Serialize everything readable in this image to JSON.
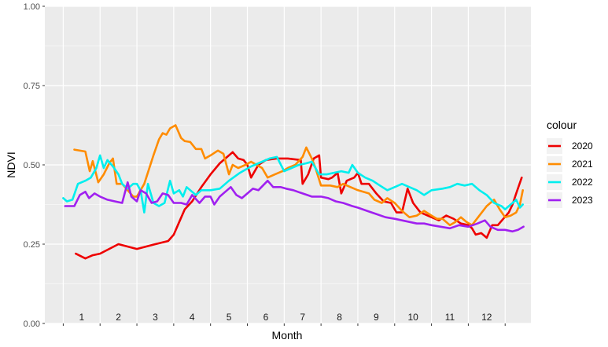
{
  "chart_data": {
    "type": "line",
    "xlabel": "Month",
    "ylabel": "NDVI",
    "xlim": [
      0,
      12
    ],
    "ylim": [
      0,
      1
    ],
    "y_ticks": [
      "0.00",
      "0.25",
      "0.50",
      "0.75",
      "1.00"
    ],
    "month_labels": [
      "1",
      "2",
      "3",
      "4",
      "5",
      "6",
      "7",
      "8",
      "9",
      "10",
      "11",
      "12"
    ],
    "grid": true,
    "legend_title": "colour",
    "legend_position": "right",
    "series": [
      {
        "name": "2020",
        "color": "#ee0000",
        "points": [
          [
            0.34,
            0.22
          ],
          [
            0.6,
            0.205
          ],
          [
            0.8,
            0.215
          ],
          [
            1.0,
            0.22
          ],
          [
            1.5,
            0.25
          ],
          [
            2.0,
            0.235
          ],
          [
            2.5,
            0.25
          ],
          [
            2.85,
            0.26
          ],
          [
            3.0,
            0.28
          ],
          [
            3.15,
            0.32
          ],
          [
            3.3,
            0.36
          ],
          [
            3.5,
            0.385
          ],
          [
            3.75,
            0.43
          ],
          [
            4.0,
            0.47
          ],
          [
            4.25,
            0.505
          ],
          [
            4.45,
            0.525
          ],
          [
            4.6,
            0.54
          ],
          [
            4.75,
            0.52
          ],
          [
            4.9,
            0.515
          ],
          [
            5.0,
            0.5
          ],
          [
            5.1,
            0.46
          ],
          [
            5.3,
            0.5
          ],
          [
            5.5,
            0.515
          ],
          [
            5.8,
            0.52
          ],
          [
            6.1,
            0.52
          ],
          [
            6.45,
            0.515
          ],
          [
            6.5,
            0.44
          ],
          [
            6.65,
            0.47
          ],
          [
            6.8,
            0.52
          ],
          [
            6.95,
            0.53
          ],
          [
            7.0,
            0.46
          ],
          [
            7.2,
            0.455
          ],
          [
            7.3,
            0.46
          ],
          [
            7.45,
            0.475
          ],
          [
            7.55,
            0.41
          ],
          [
            7.7,
            0.45
          ],
          [
            7.9,
            0.46
          ],
          [
            8.0,
            0.475
          ],
          [
            8.1,
            0.44
          ],
          [
            8.3,
            0.44
          ],
          [
            8.5,
            0.41
          ],
          [
            8.7,
            0.385
          ],
          [
            8.9,
            0.38
          ],
          [
            9.05,
            0.35
          ],
          [
            9.2,
            0.35
          ],
          [
            9.35,
            0.425
          ],
          [
            9.5,
            0.38
          ],
          [
            9.7,
            0.35
          ],
          [
            10.0,
            0.335
          ],
          [
            10.2,
            0.325
          ],
          [
            10.4,
            0.34
          ],
          [
            10.6,
            0.33
          ],
          [
            10.8,
            0.315
          ],
          [
            11.0,
            0.31
          ],
          [
            11.1,
            0.3
          ],
          [
            11.2,
            0.28
          ],
          [
            11.35,
            0.285
          ],
          [
            11.5,
            0.27
          ],
          [
            11.65,
            0.31
          ],
          [
            11.8,
            0.31
          ],
          [
            11.95,
            0.33
          ],
          [
            12.1,
            0.35
          ],
          [
            12.2,
            0.375
          ],
          [
            12.3,
            0.41
          ],
          [
            12.45,
            0.46
          ]
        ]
      },
      {
        "name": "2021",
        "color": "#ff8c00",
        "points": [
          [
            0.3,
            0.548
          ],
          [
            0.6,
            0.542
          ],
          [
            0.72,
            0.48
          ],
          [
            0.8,
            0.512
          ],
          [
            0.95,
            0.445
          ],
          [
            1.1,
            0.47
          ],
          [
            1.25,
            0.505
          ],
          [
            1.35,
            0.52
          ],
          [
            1.45,
            0.44
          ],
          [
            1.6,
            0.44
          ],
          [
            1.75,
            0.42
          ],
          [
            1.9,
            0.4
          ],
          [
            2.0,
            0.4
          ],
          [
            2.2,
            0.44
          ],
          [
            2.45,
            0.53
          ],
          [
            2.6,
            0.58
          ],
          [
            2.7,
            0.6
          ],
          [
            2.8,
            0.595
          ],
          [
            2.9,
            0.615
          ],
          [
            3.05,
            0.625
          ],
          [
            3.2,
            0.585
          ],
          [
            3.3,
            0.575
          ],
          [
            3.45,
            0.572
          ],
          [
            3.6,
            0.55
          ],
          [
            3.75,
            0.55
          ],
          [
            3.85,
            0.52
          ],
          [
            4.0,
            0.53
          ],
          [
            4.2,
            0.545
          ],
          [
            4.35,
            0.535
          ],
          [
            4.5,
            0.47
          ],
          [
            4.6,
            0.5
          ],
          [
            4.75,
            0.49
          ],
          [
            4.95,
            0.5
          ],
          [
            5.1,
            0.51
          ],
          [
            5.25,
            0.5
          ],
          [
            5.4,
            0.49
          ],
          [
            5.55,
            0.46
          ],
          [
            5.75,
            0.47
          ],
          [
            5.95,
            0.48
          ],
          [
            6.1,
            0.49
          ],
          [
            6.3,
            0.5
          ],
          [
            6.5,
            0.525
          ],
          [
            6.6,
            0.555
          ],
          [
            6.75,
            0.52
          ],
          [
            6.85,
            0.49
          ],
          [
            7.0,
            0.435
          ],
          [
            7.25,
            0.435
          ],
          [
            7.45,
            0.43
          ],
          [
            7.6,
            0.44
          ],
          [
            7.8,
            0.43
          ],
          [
            8.0,
            0.42
          ],
          [
            8.3,
            0.41
          ],
          [
            8.45,
            0.39
          ],
          [
            8.65,
            0.38
          ],
          [
            8.8,
            0.395
          ],
          [
            9.0,
            0.38
          ],
          [
            9.2,
            0.355
          ],
          [
            9.4,
            0.335
          ],
          [
            9.6,
            0.34
          ],
          [
            9.8,
            0.355
          ],
          [
            10.0,
            0.34
          ],
          [
            10.15,
            0.33
          ],
          [
            10.3,
            0.33
          ],
          [
            10.5,
            0.31
          ],
          [
            10.65,
            0.32
          ],
          [
            10.8,
            0.335
          ],
          [
            10.95,
            0.32
          ],
          [
            11.1,
            0.31
          ],
          [
            11.3,
            0.34
          ],
          [
            11.5,
            0.37
          ],
          [
            11.7,
            0.39
          ],
          [
            11.85,
            0.36
          ],
          [
            12.0,
            0.335
          ],
          [
            12.15,
            0.34
          ],
          [
            12.3,
            0.35
          ],
          [
            12.4,
            0.375
          ],
          [
            12.48,
            0.42
          ]
        ]
      },
      {
        "name": "2022",
        "color": "#00eeee",
        "points": [
          [
            0.0,
            0.395
          ],
          [
            0.1,
            0.385
          ],
          [
            0.25,
            0.39
          ],
          [
            0.4,
            0.44
          ],
          [
            0.6,
            0.45
          ],
          [
            0.75,
            0.46
          ],
          [
            0.9,
            0.49
          ],
          [
            1.0,
            0.53
          ],
          [
            1.1,
            0.49
          ],
          [
            1.2,
            0.515
          ],
          [
            1.35,
            0.495
          ],
          [
            1.5,
            0.47
          ],
          [
            1.6,
            0.44
          ],
          [
            1.75,
            0.425
          ],
          [
            1.9,
            0.44
          ],
          [
            2.0,
            0.44
          ],
          [
            2.1,
            0.42
          ],
          [
            2.2,
            0.35
          ],
          [
            2.3,
            0.44
          ],
          [
            2.45,
            0.38
          ],
          [
            2.6,
            0.37
          ],
          [
            2.75,
            0.38
          ],
          [
            2.9,
            0.45
          ],
          [
            3.0,
            0.41
          ],
          [
            3.15,
            0.42
          ],
          [
            3.25,
            0.4
          ],
          [
            3.35,
            0.43
          ],
          [
            3.45,
            0.42
          ],
          [
            3.6,
            0.405
          ],
          [
            3.75,
            0.42
          ],
          [
            4.0,
            0.42
          ],
          [
            4.25,
            0.425
          ],
          [
            4.5,
            0.45
          ],
          [
            4.8,
            0.475
          ],
          [
            5.1,
            0.495
          ],
          [
            5.4,
            0.51
          ],
          [
            5.6,
            0.52
          ],
          [
            5.8,
            0.525
          ],
          [
            6.0,
            0.48
          ],
          [
            6.2,
            0.49
          ],
          [
            6.4,
            0.5
          ],
          [
            6.6,
            0.505
          ],
          [
            6.75,
            0.51
          ],
          [
            6.95,
            0.47
          ],
          [
            7.15,
            0.47
          ],
          [
            7.35,
            0.475
          ],
          [
            7.55,
            0.48
          ],
          [
            7.75,
            0.475
          ],
          [
            7.85,
            0.5
          ],
          [
            8.0,
            0.475
          ],
          [
            8.2,
            0.46
          ],
          [
            8.4,
            0.45
          ],
          [
            8.6,
            0.435
          ],
          [
            8.8,
            0.42
          ],
          [
            9.0,
            0.43
          ],
          [
            9.2,
            0.44
          ],
          [
            9.4,
            0.43
          ],
          [
            9.6,
            0.42
          ],
          [
            9.8,
            0.405
          ],
          [
            10.0,
            0.42
          ],
          [
            10.3,
            0.425
          ],
          [
            10.5,
            0.43
          ],
          [
            10.7,
            0.44
          ],
          [
            10.9,
            0.435
          ],
          [
            11.1,
            0.44
          ],
          [
            11.3,
            0.42
          ],
          [
            11.5,
            0.405
          ],
          [
            11.7,
            0.38
          ],
          [
            11.9,
            0.37
          ],
          [
            12.0,
            0.36
          ],
          [
            12.15,
            0.375
          ],
          [
            12.3,
            0.39
          ],
          [
            12.4,
            0.365
          ],
          [
            12.48,
            0.375
          ]
        ]
      },
      {
        "name": "2023",
        "color": "#a020f0",
        "points": [
          [
            0.05,
            0.37
          ],
          [
            0.3,
            0.37
          ],
          [
            0.45,
            0.405
          ],
          [
            0.6,
            0.415
          ],
          [
            0.7,
            0.395
          ],
          [
            0.85,
            0.41
          ],
          [
            1.0,
            0.4
          ],
          [
            1.2,
            0.39
          ],
          [
            1.4,
            0.385
          ],
          [
            1.6,
            0.38
          ],
          [
            1.75,
            0.445
          ],
          [
            1.85,
            0.4
          ],
          [
            2.0,
            0.385
          ],
          [
            2.1,
            0.42
          ],
          [
            2.25,
            0.41
          ],
          [
            2.4,
            0.38
          ],
          [
            2.55,
            0.385
          ],
          [
            2.7,
            0.41
          ],
          [
            2.85,
            0.405
          ],
          [
            3.0,
            0.38
          ],
          [
            3.2,
            0.38
          ],
          [
            3.35,
            0.375
          ],
          [
            3.5,
            0.405
          ],
          [
            3.7,
            0.38
          ],
          [
            3.85,
            0.4
          ],
          [
            4.0,
            0.4
          ],
          [
            4.1,
            0.375
          ],
          [
            4.25,
            0.4
          ],
          [
            4.4,
            0.415
          ],
          [
            4.55,
            0.43
          ],
          [
            4.7,
            0.405
          ],
          [
            4.85,
            0.395
          ],
          [
            5.0,
            0.41
          ],
          [
            5.15,
            0.425
          ],
          [
            5.3,
            0.42
          ],
          [
            5.55,
            0.45
          ],
          [
            5.7,
            0.43
          ],
          [
            5.9,
            0.43
          ],
          [
            6.05,
            0.425
          ],
          [
            6.25,
            0.42
          ],
          [
            6.5,
            0.41
          ],
          [
            6.75,
            0.4
          ],
          [
            7.0,
            0.4
          ],
          [
            7.2,
            0.395
          ],
          [
            7.4,
            0.385
          ],
          [
            7.6,
            0.38
          ],
          [
            7.85,
            0.37
          ],
          [
            8.0,
            0.365
          ],
          [
            8.25,
            0.355
          ],
          [
            8.5,
            0.345
          ],
          [
            8.75,
            0.335
          ],
          [
            9.0,
            0.33
          ],
          [
            9.2,
            0.325
          ],
          [
            9.4,
            0.32
          ],
          [
            9.6,
            0.315
          ],
          [
            9.8,
            0.315
          ],
          [
            10.0,
            0.31
          ],
          [
            10.25,
            0.305
          ],
          [
            10.5,
            0.3
          ],
          [
            10.75,
            0.31
          ],
          [
            11.0,
            0.305
          ],
          [
            11.25,
            0.315
          ],
          [
            11.45,
            0.325
          ],
          [
            11.6,
            0.305
          ],
          [
            11.8,
            0.295
          ],
          [
            12.0,
            0.295
          ],
          [
            12.2,
            0.29
          ],
          [
            12.35,
            0.295
          ],
          [
            12.5,
            0.305
          ]
        ]
      }
    ]
  }
}
